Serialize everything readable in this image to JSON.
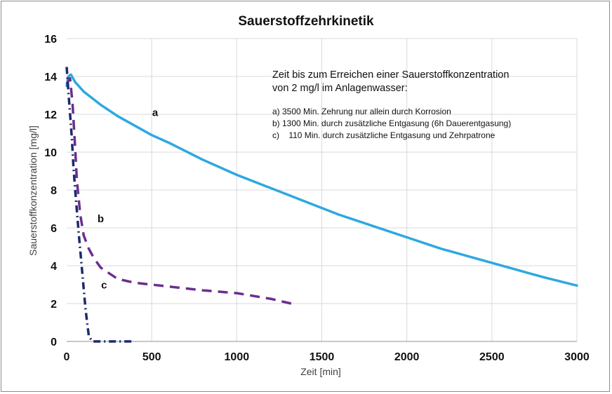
{
  "chart_data": {
    "type": "line",
    "title": "Sauerstoffzehrkinetik",
    "xlabel": "Zeit [min]",
    "ylabel": "Sauerstoffkonzentration [mg/l]",
    "xlim": [
      0,
      3000
    ],
    "ylim": [
      0,
      16
    ],
    "xticks": [
      0,
      500,
      1000,
      1500,
      2000,
      2500,
      3000
    ],
    "yticks": [
      0,
      2,
      4,
      6,
      8,
      10,
      12,
      14,
      16
    ],
    "xtick_labels": [
      "0",
      "500",
      "1000",
      "1500",
      "2000",
      "2500",
      "3000"
    ],
    "ytick_labels": [
      "0",
      "2",
      "4",
      "6",
      "8",
      "10",
      "12",
      "14",
      "16"
    ],
    "grid": true,
    "legend": "none",
    "series": [
      {
        "name": "a",
        "style": "solid",
        "color": "#2ea8e0",
        "x": [
          0,
          10,
          25,
          50,
          100,
          200,
          300,
          400,
          500,
          600,
          800,
          1000,
          1200,
          1400,
          1600,
          1800,
          2000,
          2200,
          2400,
          2600,
          2800,
          3000
        ],
        "y": [
          13.5,
          14.0,
          14.1,
          13.7,
          13.2,
          12.5,
          11.9,
          11.4,
          10.9,
          10.5,
          9.6,
          8.8,
          8.1,
          7.4,
          6.7,
          6.1,
          5.5,
          4.9,
          4.4,
          3.9,
          3.4,
          2.95
        ]
      },
      {
        "name": "b",
        "style": "dashed",
        "color": "#6b2e8f",
        "x": [
          0,
          20,
          35,
          50,
          60,
          80,
          100,
          130,
          160,
          200,
          300,
          400,
          600,
          800,
          1000,
          1200,
          1320
        ],
        "y": [
          13.6,
          13.9,
          12.5,
          10.2,
          8.5,
          6.7,
          5.6,
          4.9,
          4.4,
          3.9,
          3.3,
          3.1,
          2.9,
          2.7,
          2.55,
          2.25,
          2.0
        ]
      },
      {
        "name": "c",
        "style": "dash-dot",
        "color": "#1a2a6c",
        "x": [
          0,
          10,
          20,
          30,
          40,
          50,
          60,
          70,
          80,
          90,
          100,
          110,
          120,
          130,
          150,
          170,
          200,
          250,
          300,
          350,
          400
        ],
        "y": [
          14.5,
          13.2,
          12.0,
          10.8,
          9.2,
          8.0,
          6.9,
          5.8,
          4.8,
          3.8,
          2.8,
          1.8,
          1.0,
          0.3,
          0.0,
          0.0,
          0.0,
          0.0,
          0.0,
          0.0,
          0.0
        ]
      }
    ],
    "labels": [
      {
        "text": "a",
        "x": 520,
        "y": 11.9
      },
      {
        "text": "b",
        "x": 200,
        "y": 6.3
      },
      {
        "text": "c",
        "x": 220,
        "y": 2.8
      }
    ],
    "annotation": {
      "header_line1": "Zeit bis zum Erreichen einer Sauerstoffkonzentration",
      "header_line2": "von 2 mg/l im Anlagenwasser:",
      "items": [
        "a) 3500 Min. Zehrung nur allein durch Korrosion",
        "b) 1300 Min. durch zusätzliche Entgasung (6h Dauerentgasung)",
        "c)    110 Min. durch zusätzliche Entgasung und Zehrpatrone"
      ]
    }
  }
}
